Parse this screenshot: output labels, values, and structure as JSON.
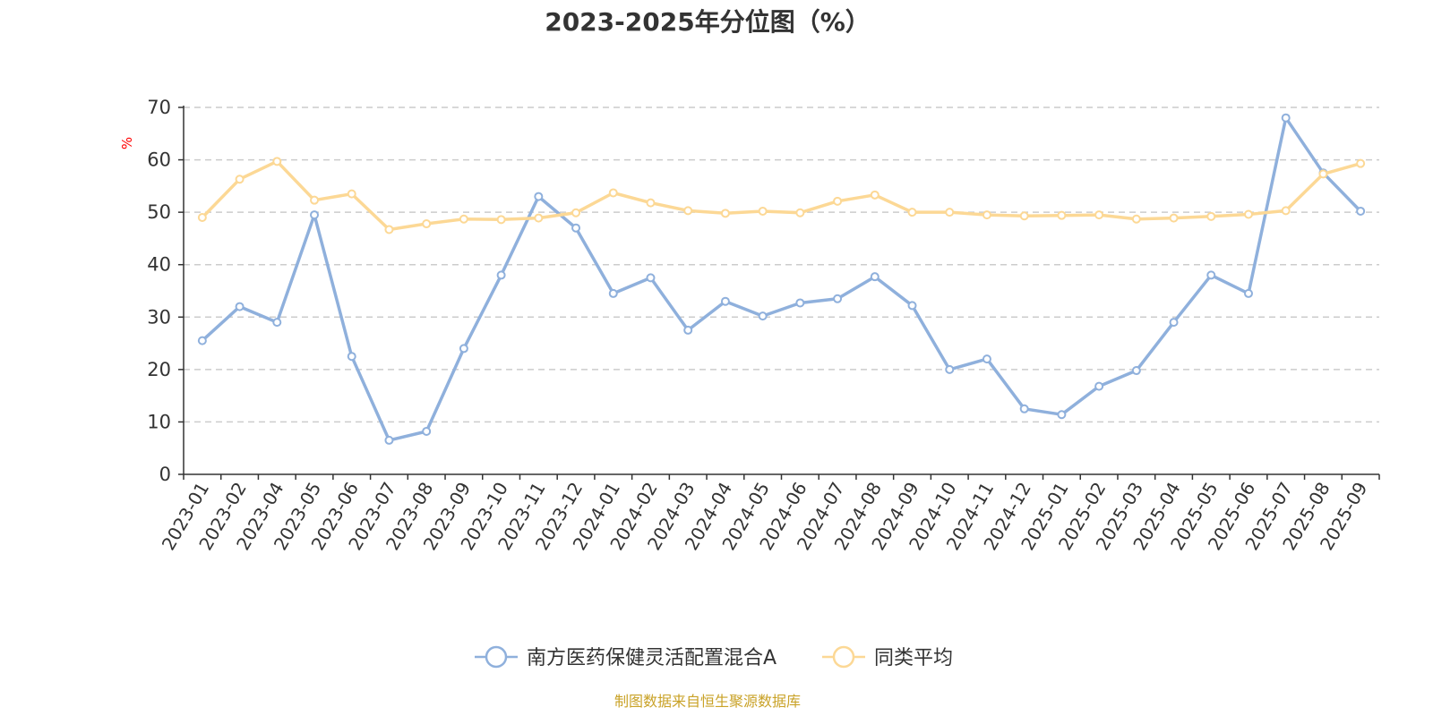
{
  "colors": {
    "series_fund": "#8fb0dc",
    "series_avg": "#fcd895",
    "axis": "#333333",
    "grid": "#cccccc",
    "ylabel": "#ff0000",
    "source": "#c9a227"
  },
  "chart_data": {
    "type": "line",
    "title": "2023-2025年分位图（%）",
    "xlabel": "",
    "ylabel": "%",
    "ylim": [
      0,
      70
    ],
    "yticks": [
      0,
      10,
      20,
      30,
      40,
      50,
      60,
      70
    ],
    "grid": true,
    "legend_position": "bottom-center",
    "categories": [
      "2023-01",
      "2023-02",
      "2023-04",
      "2023-05",
      "2023-06",
      "2023-07",
      "2023-08",
      "2023-09",
      "2023-10",
      "2023-11",
      "2023-12",
      "2024-01",
      "2024-02",
      "2024-03",
      "2024-04",
      "2024-05",
      "2024-06",
      "2024-07",
      "2024-08",
      "2024-09",
      "2024-10",
      "2024-11",
      "2024-12",
      "2025-01",
      "2025-02",
      "2025-03",
      "2025-04",
      "2025-05",
      "2025-06",
      "2025-07",
      "2025-08",
      "2025-09"
    ],
    "series": [
      {
        "name": "南方医药保健灵活配置混合A",
        "color_key": "series_fund",
        "values": [
          25.5,
          32,
          29,
          49.5,
          22.5,
          6.5,
          8.2,
          24,
          38,
          53,
          47,
          34.5,
          37.5,
          27.5,
          33,
          30.2,
          32.7,
          33.5,
          37.7,
          32.2,
          20,
          22,
          12.5,
          11.4,
          16.8,
          19.8,
          29,
          38,
          34.5,
          68,
          57.5,
          50.2
        ]
      },
      {
        "name": "同类平均",
        "color_key": "series_avg",
        "values": [
          49,
          56.3,
          59.7,
          52.3,
          53.5,
          46.7,
          47.8,
          48.7,
          48.6,
          48.9,
          49.9,
          53.7,
          51.8,
          50.3,
          49.8,
          50.2,
          49.9,
          52.1,
          53.3,
          50,
          50,
          49.5,
          49.3,
          49.4,
          49.5,
          48.7,
          48.9,
          49.2,
          49.6,
          50.3,
          57.3,
          59.3
        ]
      }
    ]
  },
  "source_text": "制图数据来自恒生聚源数据库"
}
